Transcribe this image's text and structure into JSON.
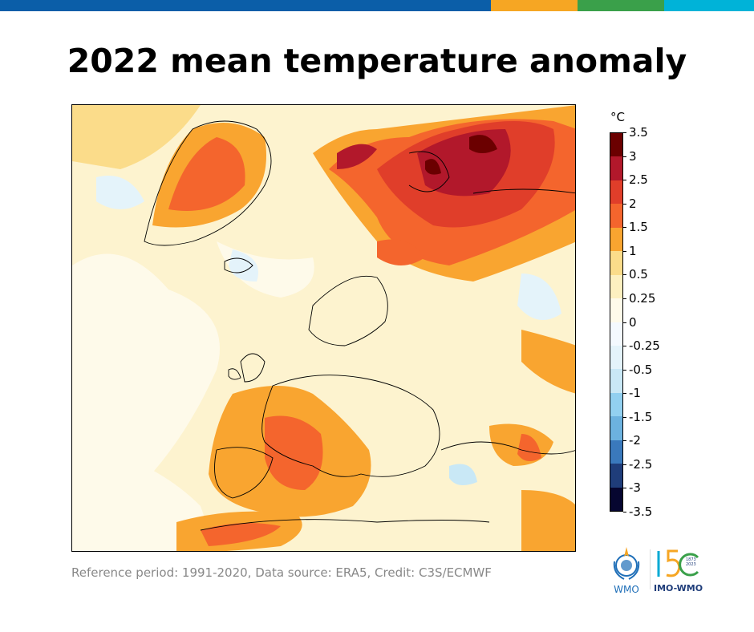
{
  "header": {
    "stripe_colors": [
      "#0b5ea8",
      "#f6a623",
      "#3aa04a",
      "#00b3d8"
    ],
    "title": "2022 mean temperature anomaly"
  },
  "map": {
    "region": "Europe",
    "variable": "temperature anomaly"
  },
  "colorbar": {
    "unit": "°C",
    "labels": [
      "3.5",
      "3",
      "2.5",
      "2",
      "1.5",
      "1",
      "0.5",
      "0.25",
      "0",
      "-0.25",
      "-0.5",
      "-1",
      "-1.5",
      "-2",
      "-2.5",
      "-3",
      "-3.5"
    ],
    "colors": [
      "#6b0000",
      "#b2182b",
      "#e03e2a",
      "#f4652d",
      "#f9a530",
      "#fbdc8a",
      "#fdf0c0",
      "#fefaea",
      "#f4f9fe",
      "#e4f3fa",
      "#c9e8f6",
      "#92d0f0",
      "#6cb2df",
      "#3a79bc",
      "#1f3d7a",
      "#060630"
    ]
  },
  "footer": {
    "credit": "Reference period: 1991-2020, Data source: ERA5, Credit: C3S/ECMWF",
    "logo_wmo": "WMO",
    "logo_150": "IMO-WMO",
    "logo_years": "1873 2023"
  }
}
